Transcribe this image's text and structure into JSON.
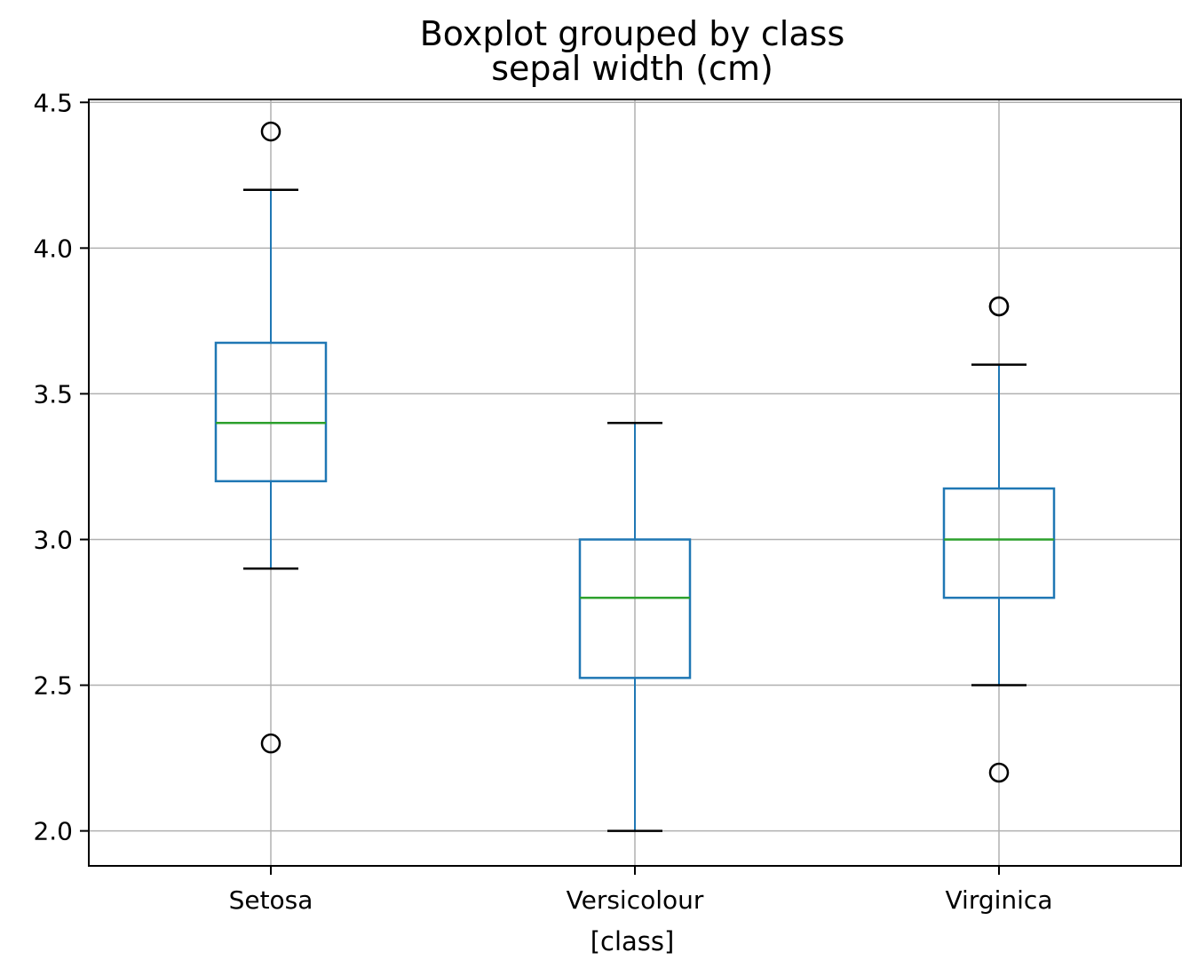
{
  "chart_data": {
    "type": "box",
    "title": "Boxplot grouped by class",
    "subtitle": "sepal width (cm)",
    "xlabel": "[class]",
    "ylabel": "",
    "ylim": [
      1.88,
      4.51
    ],
    "yticks": [
      "2.0",
      "2.5",
      "3.0",
      "3.5",
      "4.0",
      "4.5"
    ],
    "grid": true,
    "colors": {
      "box": "#1f77b4",
      "median": "#2ca02c",
      "whisker_cap": "#000000",
      "flier": "#000000",
      "grid": "#b0b0b0"
    },
    "categories": [
      "Setosa",
      "Versicolour",
      "Virginica"
    ],
    "boxes": [
      {
        "category": "Setosa",
        "whisker_low": 2.9,
        "q1": 3.2,
        "median": 3.4,
        "q3": 3.675,
        "whisker_high": 4.2,
        "fliers": [
          4.4,
          2.3
        ]
      },
      {
        "category": "Versicolour",
        "whisker_low": 2.0,
        "q1": 2.525,
        "median": 2.8,
        "q3": 3.0,
        "whisker_high": 3.4,
        "fliers": []
      },
      {
        "category": "Virginica",
        "whisker_low": 2.5,
        "q1": 2.8,
        "median": 3.0,
        "q3": 3.175,
        "whisker_high": 3.6,
        "fliers": [
          3.8,
          3.8,
          2.2
        ]
      }
    ]
  }
}
